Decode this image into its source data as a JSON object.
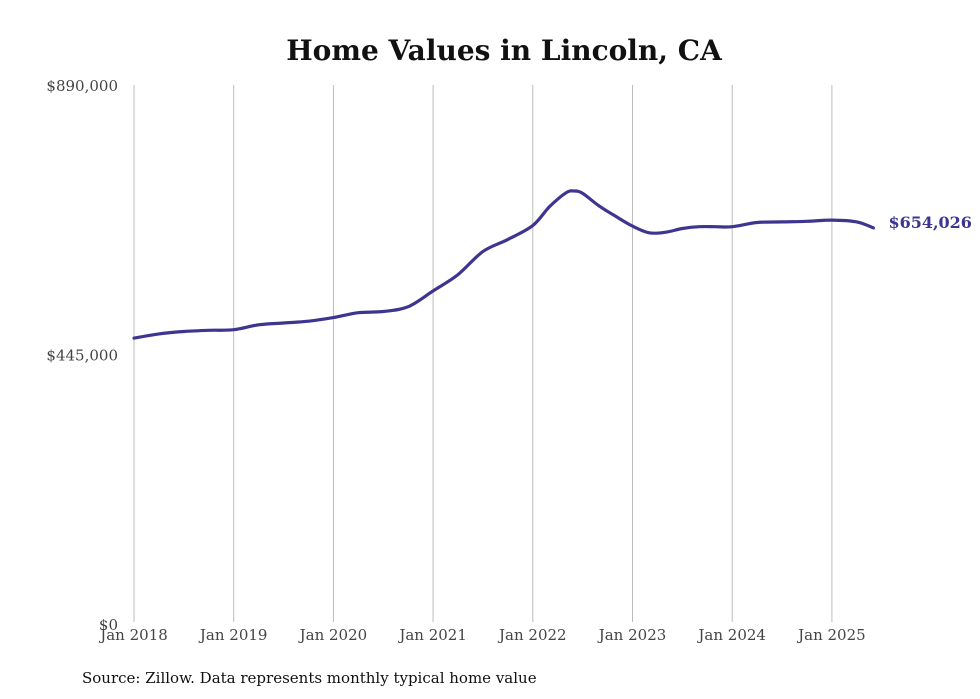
{
  "chart_data": {
    "type": "line",
    "title": "Home Values in Lincoln, CA",
    "xlabel": "",
    "ylabel": "",
    "ylim": [
      0,
      890000
    ],
    "y_ticks": [
      {
        "value": 0,
        "label": "$0"
      },
      {
        "value": 445000,
        "label": "$445,000"
      },
      {
        "value": 890000,
        "label": "$890,000"
      }
    ],
    "x_ticks": [
      "Jan 2018",
      "Jan 2019",
      "Jan 2020",
      "Jan 2021",
      "Jan 2022",
      "Jan 2023",
      "Jan 2024",
      "Jan 2025"
    ],
    "grid": "vertical",
    "line_color": "#3d3590",
    "end_label": "$654,026",
    "source": "Source: Zillow. Data represents monthly typical home value",
    "x": [
      "2018-01",
      "2018-04",
      "2018-07",
      "2018-10",
      "2019-01",
      "2019-04",
      "2019-07",
      "2019-10",
      "2020-01",
      "2020-04",
      "2020-07",
      "2020-10",
      "2021-01",
      "2021-04",
      "2021-07",
      "2021-10",
      "2022-01",
      "2022-03",
      "2022-05",
      "2022-06",
      "2022-07",
      "2022-09",
      "2022-11",
      "2023-01",
      "2023-03",
      "2023-05",
      "2023-07",
      "2023-09",
      "2023-11",
      "2024-01",
      "2024-04",
      "2024-07",
      "2024-10",
      "2025-01",
      "2025-04",
      "2025-06"
    ],
    "series": [
      {
        "values": [
          472000,
          479000,
          483000,
          485000,
          486000,
          494000,
          497000,
          500000,
          506000,
          514000,
          516000,
          524000,
          550000,
          577000,
          615000,
          635000,
          658000,
          689000,
          712000,
          715000,
          711000,
          690000,
          673000,
          657000,
          646000,
          647000,
          653000,
          656000,
          656000,
          656000,
          663000,
          664000,
          665000,
          667000,
          664000,
          654026
        ]
      }
    ]
  }
}
